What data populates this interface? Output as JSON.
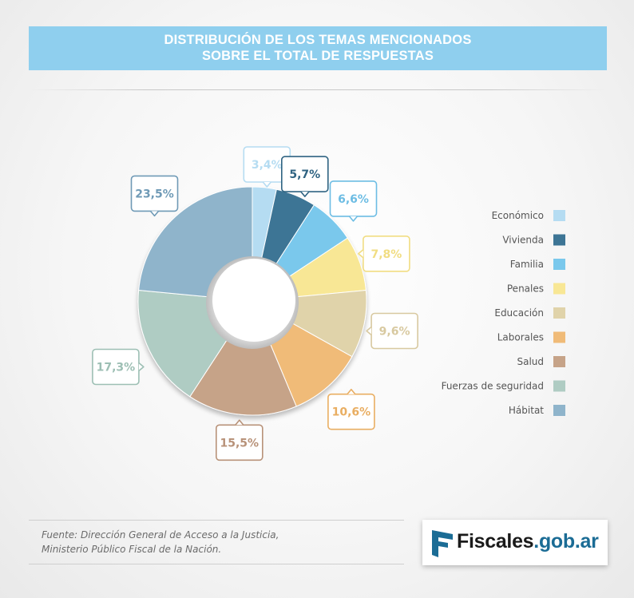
{
  "title": {
    "line1": "DISTRIBUCIÓN DE LOS TEMAS MENCIONADOS",
    "line2": "SOBRE EL TOTAL DE RESPUESTAS"
  },
  "chart_data": {
    "type": "pie",
    "donut": true,
    "categories": [
      "Económico",
      "Vivienda",
      "Familia",
      "Penales",
      "Educación",
      "Laborales",
      "Salud",
      "Fuerzas de seguridad",
      "Hábitat"
    ],
    "values": [
      3.4,
      5.7,
      6.6,
      7.8,
      9.6,
      10.6,
      15.5,
      17.3,
      23.5
    ],
    "labels": [
      "3,4%",
      "5,7%",
      "6,6%",
      "7,8%",
      "9,6%",
      "10,6%",
      "15,5%",
      "17,3%",
      "23,5%"
    ],
    "colors": [
      "#b5dcf2",
      "#3d7595",
      "#7ac8ec",
      "#f8e795",
      "#e0d3aa",
      "#f0bb78",
      "#c6a388",
      "#afccc3",
      "#8fb4cb"
    ],
    "label_text_colors": [
      "#b5dcf2",
      "#2f6382",
      "#6dbde4",
      "#f1dd82",
      "#d8c9a0",
      "#e9ae62",
      "#b89279",
      "#9dbfb4",
      "#6f9ab6"
    ],
    "legend_position": "right",
    "start": "top, clockwise"
  },
  "footer": {
    "source_line1": "Fuente: Dirección General de Acceso a la Justicia,",
    "source_line2": "Ministerio Público Fiscal de la Nación.",
    "logo_name": "Fiscales",
    "logo_domain": ".gob.ar",
    "logo_icon": "arrow-flag-icon"
  }
}
